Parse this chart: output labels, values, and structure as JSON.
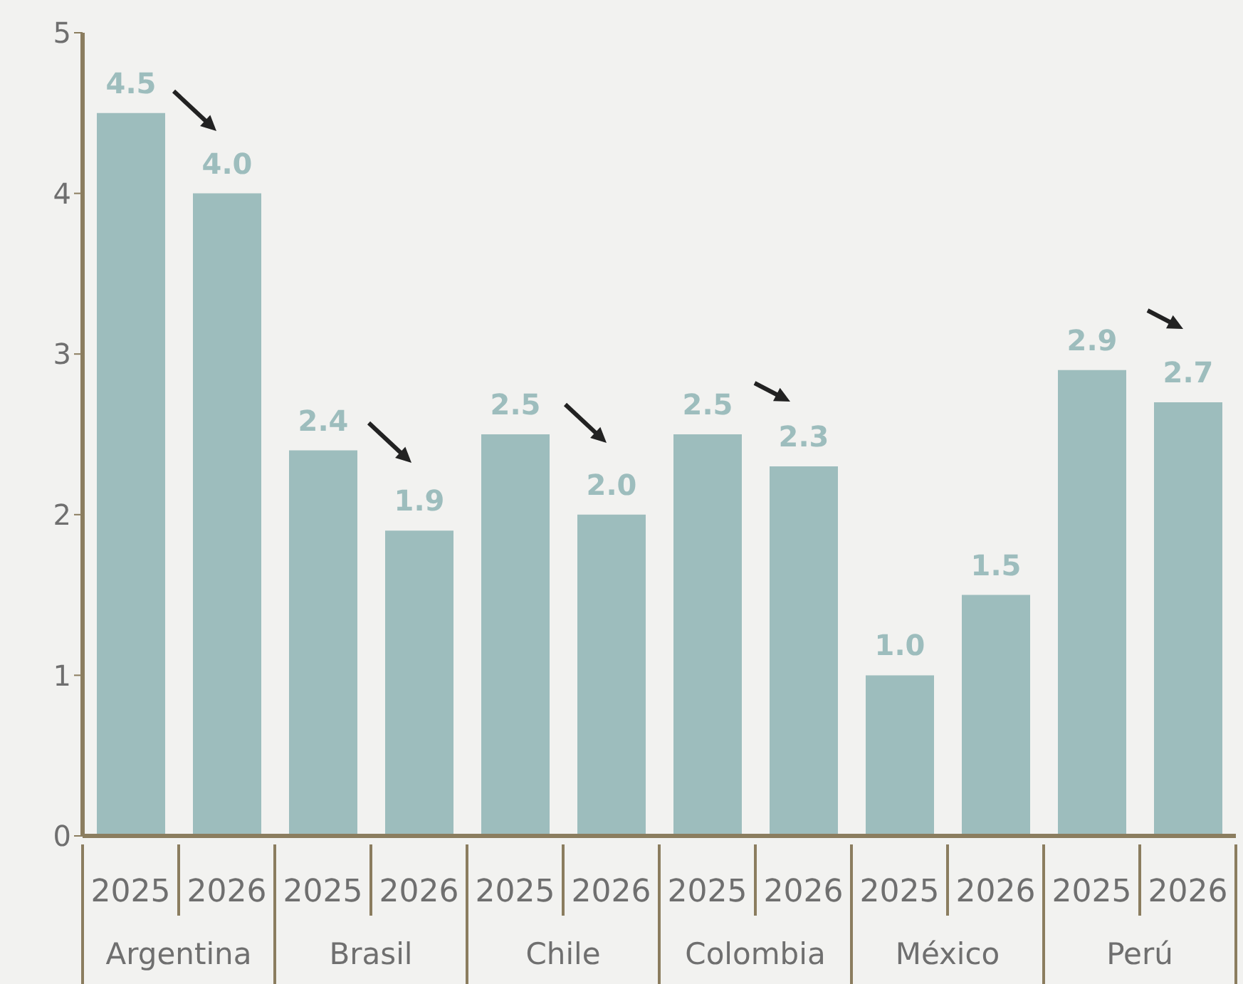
{
  "chart_data": {
    "type": "bar",
    "categories": [
      "2025",
      "2026",
      "2025",
      "2026",
      "2025",
      "2026",
      "2025",
      "2026",
      "2025",
      "2026",
      "2025",
      "2026"
    ],
    "values": [
      4.5,
      4.0,
      2.4,
      1.9,
      2.5,
      2.0,
      2.5,
      2.3,
      1.0,
      1.5,
      2.9,
      2.7
    ],
    "value_labels": [
      "4.5",
      "4.0",
      "2.4",
      "1.9",
      "2.5",
      "2.0",
      "2.5",
      "2.3",
      "1.0",
      "1.5",
      "2.9",
      "2.7"
    ],
    "color": "#9dbdbd",
    "ylim": [
      0,
      5
    ],
    "yticks": [
      0,
      1,
      2,
      3,
      4,
      5
    ],
    "annotations": [
      "Argentina",
      "Brasil",
      "Chile",
      "Colombia",
      "México",
      "Perú"
    ]
  }
}
